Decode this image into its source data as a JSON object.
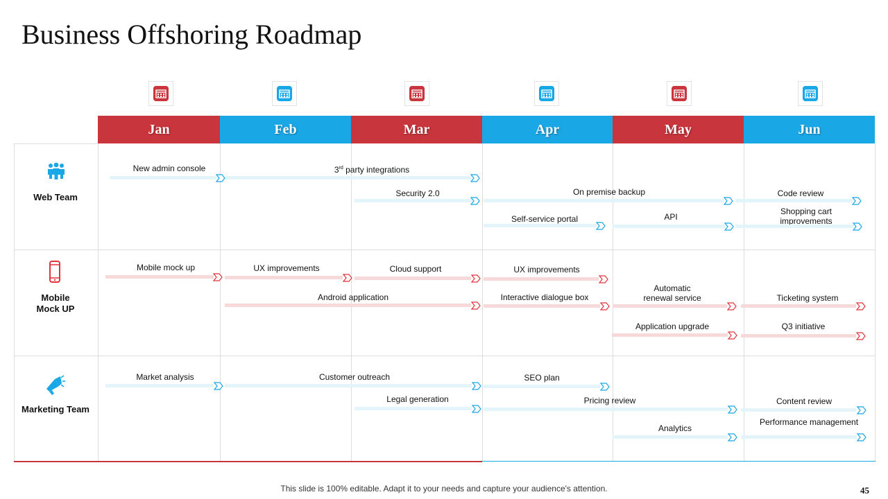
{
  "title": "Business Offshoring Roadmap",
  "colors": {
    "red": "#c8353c",
    "blue": "#1aa7e6",
    "bar_blue": "#e3f4fb",
    "bar_red": "#f7d9d9"
  },
  "months": [
    "Jan",
    "Feb",
    "Mar",
    "Apr",
    "May",
    "Jun"
  ],
  "month_icons": [
    "calendar-icon",
    "calendar-icon",
    "calendar-icon",
    "calendar-icon",
    "calendar-icon",
    "calendar-icon"
  ],
  "teams": [
    {
      "label": "Web Team",
      "icon": "team-icon"
    },
    {
      "label": "Mobile Mock UP",
      "icon": "smartphone-icon"
    },
    {
      "label": "Marketing Team",
      "icon": "megaphone-icon"
    }
  ],
  "tasks": {
    "web": {
      "new_admin_console": "New admin console",
      "third_party_prefix": "3",
      "third_party_sup": "rd",
      "third_party_rest": " party integrations",
      "security": "Security 2.0",
      "on_premise_backup": "On premise backup",
      "code_review": "Code review",
      "self_service_portal": "Self-service portal",
      "api": "API",
      "shopping_cart_1": "Shopping cart",
      "shopping_cart_2": "improvements"
    },
    "mobile": {
      "mobile_mock_up": "Mobile mock up",
      "ux_improvements_1": "UX improvements",
      "cloud_support": "Cloud support",
      "ux_improvements_2": "UX improvements",
      "android_application": "Android application",
      "interactive_dialogue_box": "Interactive dialogue box",
      "automatic_renewal_1": "Automatic",
      "automatic_renewal_2": "renewal service",
      "ticketing_system": "Ticketing system",
      "application_upgrade": "Application upgrade",
      "q3_initiative": "Q3 initiative"
    },
    "marketing": {
      "market_analysis": "Market analysis",
      "customer_outreach": "Customer outreach",
      "seo_plan": "SEO plan",
      "legal_generation": "Legal generation",
      "pricing_review": "Pricing review",
      "content_review": "Content review",
      "performance_management": "Performance management",
      "analytics": "Analytics"
    }
  },
  "footer": "This slide is 100% editable. Adapt it to your needs and capture your audience's attention.",
  "page_number": "45"
}
